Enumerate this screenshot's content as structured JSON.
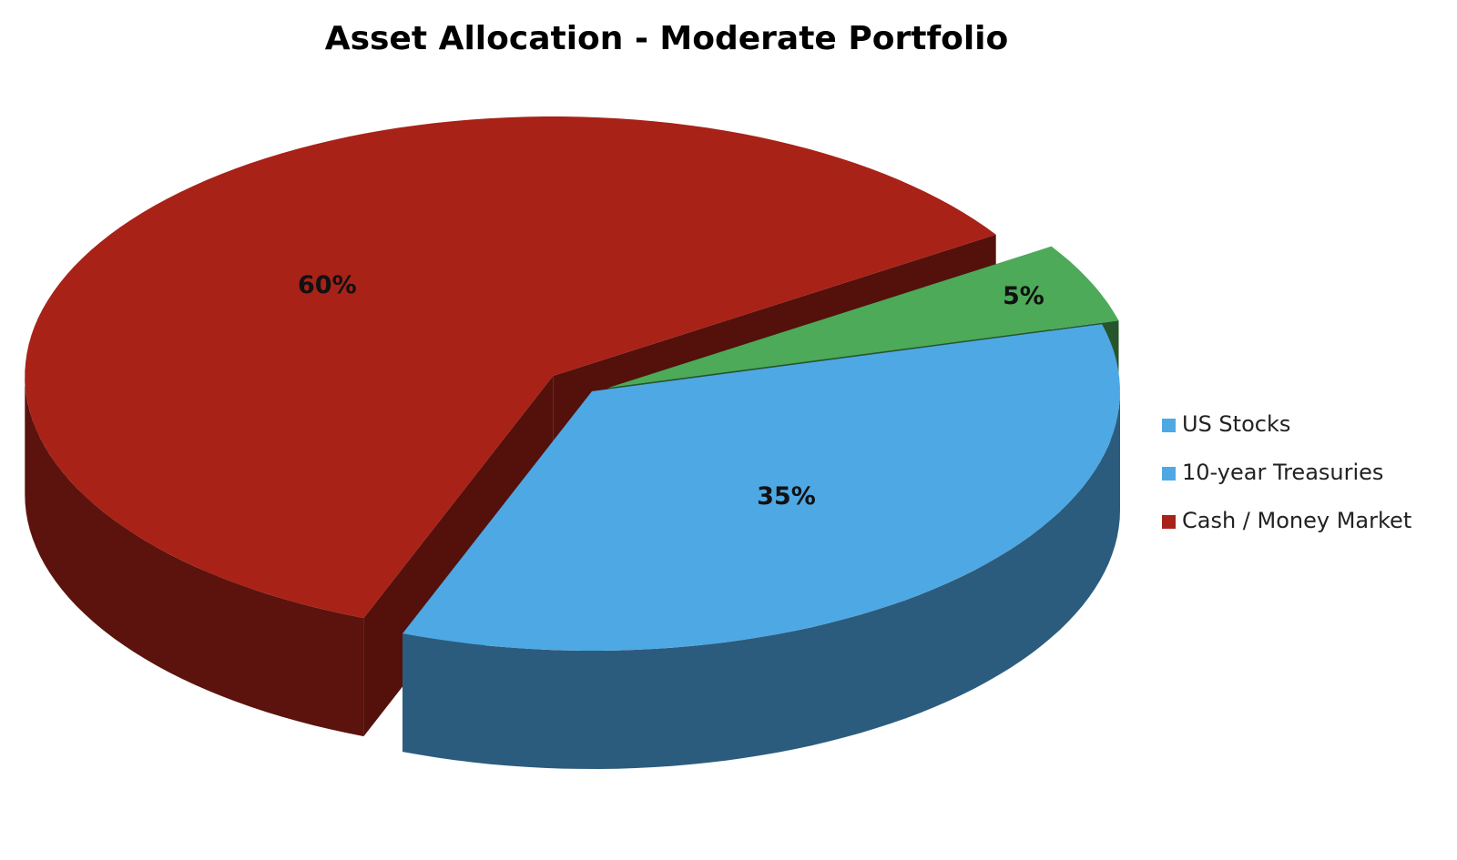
{
  "chart_data": {
    "type": "pie3d",
    "title": "Asset Allocation - Moderate Portfolio",
    "categories": [
      "US Stocks",
      "10-year Treasuries",
      "Cash / Money Market"
    ],
    "values": [
      35,
      5,
      60
    ],
    "value_labels": [
      "35%",
      "5%",
      "60%"
    ],
    "colors": [
      "#4ea8e4",
      "#4caa58",
      "#a82218"
    ],
    "legend_colors": [
      "#4ea8e4",
      "#4ea8e4",
      "#a82218"
    ],
    "legend": "right"
  }
}
